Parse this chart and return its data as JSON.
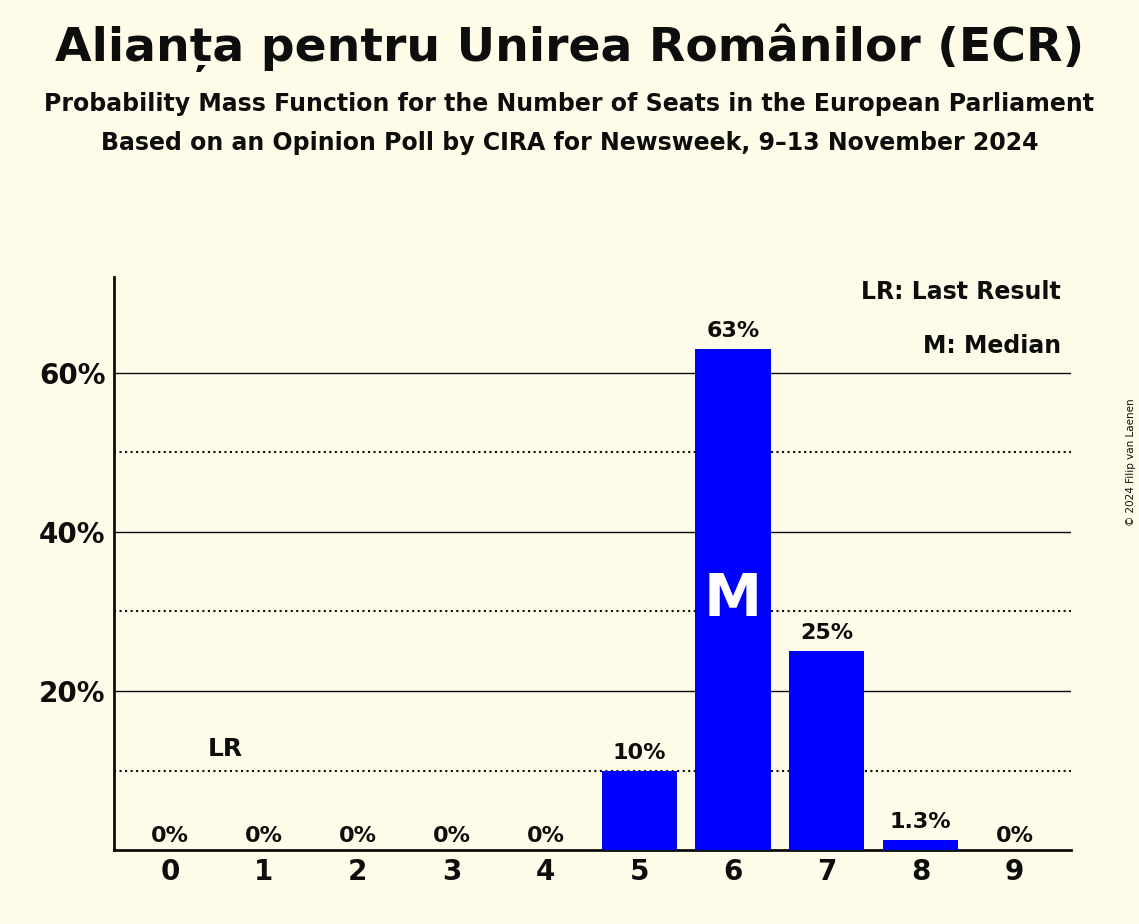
{
  "title": "Alianța pentru Unirea Românilor (ECR)",
  "subtitle1": "Probability Mass Function for the Number of Seats in the European Parliament",
  "subtitle2": "Based on an Opinion Poll by CIRA for Newsweek, 9–13 November 2024",
  "copyright": "© 2024 Filip van Laenen",
  "categories": [
    0,
    1,
    2,
    3,
    4,
    5,
    6,
    7,
    8,
    9
  ],
  "values": [
    0.0,
    0.0,
    0.0,
    0.0,
    0.0,
    0.1,
    0.63,
    0.25,
    0.013,
    0.0
  ],
  "bar_color": "#0000ff",
  "background_color": "#fefce8",
  "median_seat": 6,
  "lr_level": 0.1,
  "legend_lr": "LR: Last Result",
  "legend_m": "M: Median",
  "ylim": [
    0,
    0.72
  ],
  "yticks": [
    0.0,
    0.2,
    0.4,
    0.6
  ],
  "ytick_labels": [
    "",
    "20%",
    "40%",
    "60%"
  ],
  "solid_lines": [
    0.2,
    0.4,
    0.6
  ],
  "dotted_lines": [
    0.1,
    0.3,
    0.5
  ],
  "bar_labels": [
    "0%",
    "0%",
    "0%",
    "0%",
    "0%",
    "10%",
    "63%",
    "25%",
    "1.3%",
    "0%"
  ],
  "title_fontsize": 34,
  "subtitle_fontsize": 17,
  "tick_fontsize": 20,
  "label_fontsize": 16,
  "legend_fontsize": 17
}
